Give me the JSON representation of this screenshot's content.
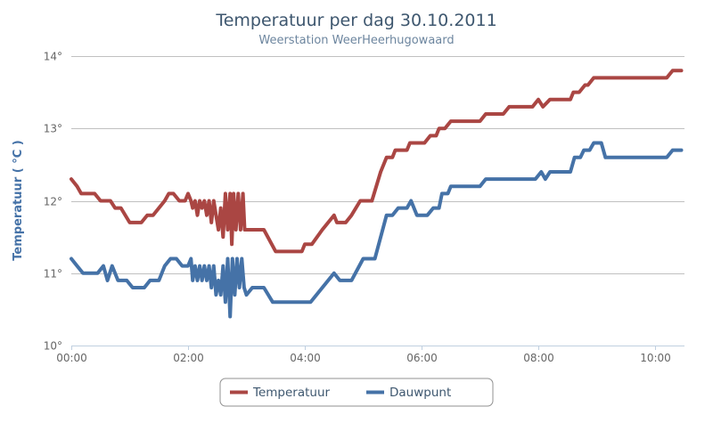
{
  "chart_data": {
    "type": "line",
    "title": "Temperatuur per dag 30.10.2011",
    "subtitle": "Weerstation WeerHeerhugowaard",
    "xlabel": "",
    "ylabel": "Temperatuur ( °C )",
    "ylim": [
      10,
      14
    ],
    "xlim_hours": [
      0,
      10.5
    ],
    "y_ticks": [
      {
        "value": 10,
        "label": "10°"
      },
      {
        "value": 11,
        "label": "11°"
      },
      {
        "value": 12,
        "label": "12°"
      },
      {
        "value": 13,
        "label": "13°"
      },
      {
        "value": 14,
        "label": "14°"
      }
    ],
    "x_ticks": [
      {
        "value": 0,
        "label": "00:00"
      },
      {
        "value": 2,
        "label": "02:00"
      },
      {
        "value": 4,
        "label": "04:00"
      },
      {
        "value": 6,
        "label": "06:00"
      },
      {
        "value": 8,
        "label": "08:00"
      },
      {
        "value": 10,
        "label": "10:00"
      }
    ],
    "grid": true,
    "legend_position": "bottom-center",
    "series": [
      {
        "name": "Temperatuur",
        "color": "#AA4643",
        "points": [
          [
            0.0,
            12.3
          ],
          [
            0.1,
            12.2
          ],
          [
            0.17,
            12.1
          ],
          [
            0.4,
            12.1
          ],
          [
            0.5,
            12.0
          ],
          [
            0.67,
            12.0
          ],
          [
            0.75,
            11.9
          ],
          [
            0.85,
            11.9
          ],
          [
            1.0,
            11.7
          ],
          [
            1.2,
            11.7
          ],
          [
            1.3,
            11.8
          ],
          [
            1.4,
            11.8
          ],
          [
            1.6,
            12.0
          ],
          [
            1.67,
            12.1
          ],
          [
            1.75,
            12.1
          ],
          [
            1.85,
            12.0
          ],
          [
            1.95,
            12.0
          ],
          [
            2.0,
            12.1
          ],
          [
            2.05,
            12.0
          ],
          [
            2.08,
            11.9
          ],
          [
            2.12,
            12.0
          ],
          [
            2.16,
            11.8
          ],
          [
            2.2,
            12.0
          ],
          [
            2.24,
            11.9
          ],
          [
            2.28,
            12.0
          ],
          [
            2.32,
            11.8
          ],
          [
            2.36,
            12.0
          ],
          [
            2.4,
            11.7
          ],
          [
            2.44,
            12.0
          ],
          [
            2.48,
            11.8
          ],
          [
            2.52,
            11.6
          ],
          [
            2.56,
            11.9
          ],
          [
            2.6,
            11.5
          ],
          [
            2.64,
            12.1
          ],
          [
            2.68,
            11.6
          ],
          [
            2.72,
            12.1
          ],
          [
            2.75,
            11.4
          ],
          [
            2.78,
            12.1
          ],
          [
            2.82,
            11.6
          ],
          [
            2.86,
            12.1
          ],
          [
            2.9,
            11.6
          ],
          [
            2.94,
            12.1
          ],
          [
            2.97,
            11.6
          ],
          [
            3.0,
            11.6
          ],
          [
            3.3,
            11.6
          ],
          [
            3.5,
            11.3
          ],
          [
            3.75,
            11.3
          ],
          [
            3.95,
            11.3
          ],
          [
            4.0,
            11.4
          ],
          [
            4.12,
            11.4
          ],
          [
            4.3,
            11.6
          ],
          [
            4.5,
            11.8
          ],
          [
            4.55,
            11.7
          ],
          [
            4.7,
            11.7
          ],
          [
            4.8,
            11.8
          ],
          [
            4.95,
            12.0
          ],
          [
            5.15,
            12.0
          ],
          [
            5.3,
            12.4
          ],
          [
            5.4,
            12.6
          ],
          [
            5.5,
            12.6
          ],
          [
            5.55,
            12.7
          ],
          [
            5.75,
            12.7
          ],
          [
            5.8,
            12.8
          ],
          [
            6.05,
            12.8
          ],
          [
            6.15,
            12.9
          ],
          [
            6.25,
            12.9
          ],
          [
            6.3,
            13.0
          ],
          [
            6.4,
            13.0
          ],
          [
            6.5,
            13.1
          ],
          [
            7.0,
            13.1
          ],
          [
            7.1,
            13.2
          ],
          [
            7.4,
            13.2
          ],
          [
            7.5,
            13.3
          ],
          [
            7.9,
            13.3
          ],
          [
            8.0,
            13.4
          ],
          [
            8.08,
            13.3
          ],
          [
            8.2,
            13.4
          ],
          [
            8.55,
            13.4
          ],
          [
            8.6,
            13.5
          ],
          [
            8.7,
            13.5
          ],
          [
            8.8,
            13.6
          ],
          [
            8.85,
            13.6
          ],
          [
            8.95,
            13.7
          ],
          [
            10.2,
            13.7
          ],
          [
            10.3,
            13.8
          ],
          [
            10.45,
            13.8
          ]
        ]
      },
      {
        "name": "Dauwpunt",
        "color": "#4572A7",
        "points": [
          [
            0.0,
            11.2
          ],
          [
            0.1,
            11.1
          ],
          [
            0.2,
            11.0
          ],
          [
            0.45,
            11.0
          ],
          [
            0.55,
            11.1
          ],
          [
            0.62,
            10.9
          ],
          [
            0.7,
            11.1
          ],
          [
            0.8,
            10.9
          ],
          [
            0.95,
            10.9
          ],
          [
            1.05,
            10.8
          ],
          [
            1.25,
            10.8
          ],
          [
            1.35,
            10.9
          ],
          [
            1.5,
            10.9
          ],
          [
            1.6,
            11.1
          ],
          [
            1.7,
            11.2
          ],
          [
            1.8,
            11.2
          ],
          [
            1.9,
            11.1
          ],
          [
            2.0,
            11.1
          ],
          [
            2.05,
            11.2
          ],
          [
            2.08,
            10.9
          ],
          [
            2.12,
            11.1
          ],
          [
            2.16,
            10.9
          ],
          [
            2.2,
            11.1
          ],
          [
            2.24,
            10.9
          ],
          [
            2.28,
            11.1
          ],
          [
            2.32,
            10.9
          ],
          [
            2.36,
            11.1
          ],
          [
            2.4,
            10.8
          ],
          [
            2.44,
            11.1
          ],
          [
            2.48,
            10.7
          ],
          [
            2.52,
            10.9
          ],
          [
            2.56,
            10.7
          ],
          [
            2.6,
            11.1
          ],
          [
            2.64,
            10.6
          ],
          [
            2.68,
            11.2
          ],
          [
            2.72,
            10.4
          ],
          [
            2.76,
            11.2
          ],
          [
            2.8,
            10.7
          ],
          [
            2.84,
            11.2
          ],
          [
            2.88,
            10.8
          ],
          [
            2.92,
            11.2
          ],
          [
            2.96,
            10.8
          ],
          [
            3.0,
            10.7
          ],
          [
            3.1,
            10.8
          ],
          [
            3.3,
            10.8
          ],
          [
            3.45,
            10.6
          ],
          [
            4.1,
            10.6
          ],
          [
            4.5,
            11.0
          ],
          [
            4.6,
            10.9
          ],
          [
            4.8,
            10.9
          ],
          [
            5.0,
            11.2
          ],
          [
            5.2,
            11.2
          ],
          [
            5.4,
            11.8
          ],
          [
            5.5,
            11.8
          ],
          [
            5.6,
            11.9
          ],
          [
            5.75,
            11.9
          ],
          [
            5.82,
            12.0
          ],
          [
            5.92,
            11.8
          ],
          [
            6.1,
            11.8
          ],
          [
            6.2,
            11.9
          ],
          [
            6.3,
            11.9
          ],
          [
            6.35,
            12.1
          ],
          [
            6.45,
            12.1
          ],
          [
            6.5,
            12.2
          ],
          [
            7.0,
            12.2
          ],
          [
            7.1,
            12.3
          ],
          [
            7.95,
            12.3
          ],
          [
            8.05,
            12.4
          ],
          [
            8.12,
            12.3
          ],
          [
            8.2,
            12.4
          ],
          [
            8.55,
            12.4
          ],
          [
            8.62,
            12.6
          ],
          [
            8.72,
            12.6
          ],
          [
            8.78,
            12.7
          ],
          [
            8.88,
            12.7
          ],
          [
            8.95,
            12.8
          ],
          [
            9.08,
            12.8
          ],
          [
            9.15,
            12.6
          ],
          [
            10.2,
            12.6
          ],
          [
            10.3,
            12.7
          ],
          [
            10.45,
            12.7
          ]
        ]
      }
    ]
  }
}
